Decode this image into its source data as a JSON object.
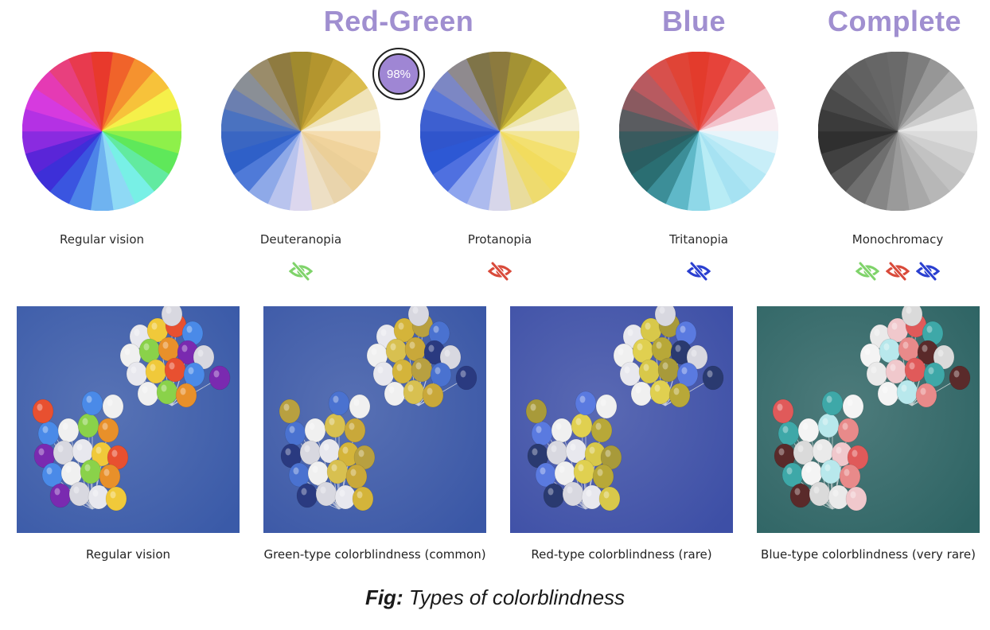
{
  "group_titles": {
    "red_green": "Red-Green",
    "blue": "Blue",
    "complete": "Complete"
  },
  "badge": {
    "text": "98%"
  },
  "wheels": [
    {
      "label": "Regular vision",
      "palette": "regular"
    },
    {
      "label": "Deuteranopia",
      "palette": "deuteranopia"
    },
    {
      "label": "Protanopia",
      "palette": "protanopia"
    },
    {
      "label": "Tritanopia",
      "palette": "tritanopia"
    },
    {
      "label": "Monochromacy",
      "palette": "monochromacy"
    }
  ],
  "icon_colors": {
    "green": "#7fd36a",
    "red": "#d94a3a",
    "blue": "#2a3fd0"
  },
  "photos": [
    {
      "label": "Regular vision",
      "background": "#3a5aa8"
    },
    {
      "label": "Green-type colorblindness (common)",
      "background": "#3a57a6"
    },
    {
      "label": "Red-type colorblindness (rare)",
      "background": "#3d4fa6"
    },
    {
      "label": "Blue-type colorblindness (very rare)",
      "background": "#2e6464"
    }
  ],
  "caption": {
    "prefix": "Fig:",
    "text": " Types of colorblindness"
  }
}
